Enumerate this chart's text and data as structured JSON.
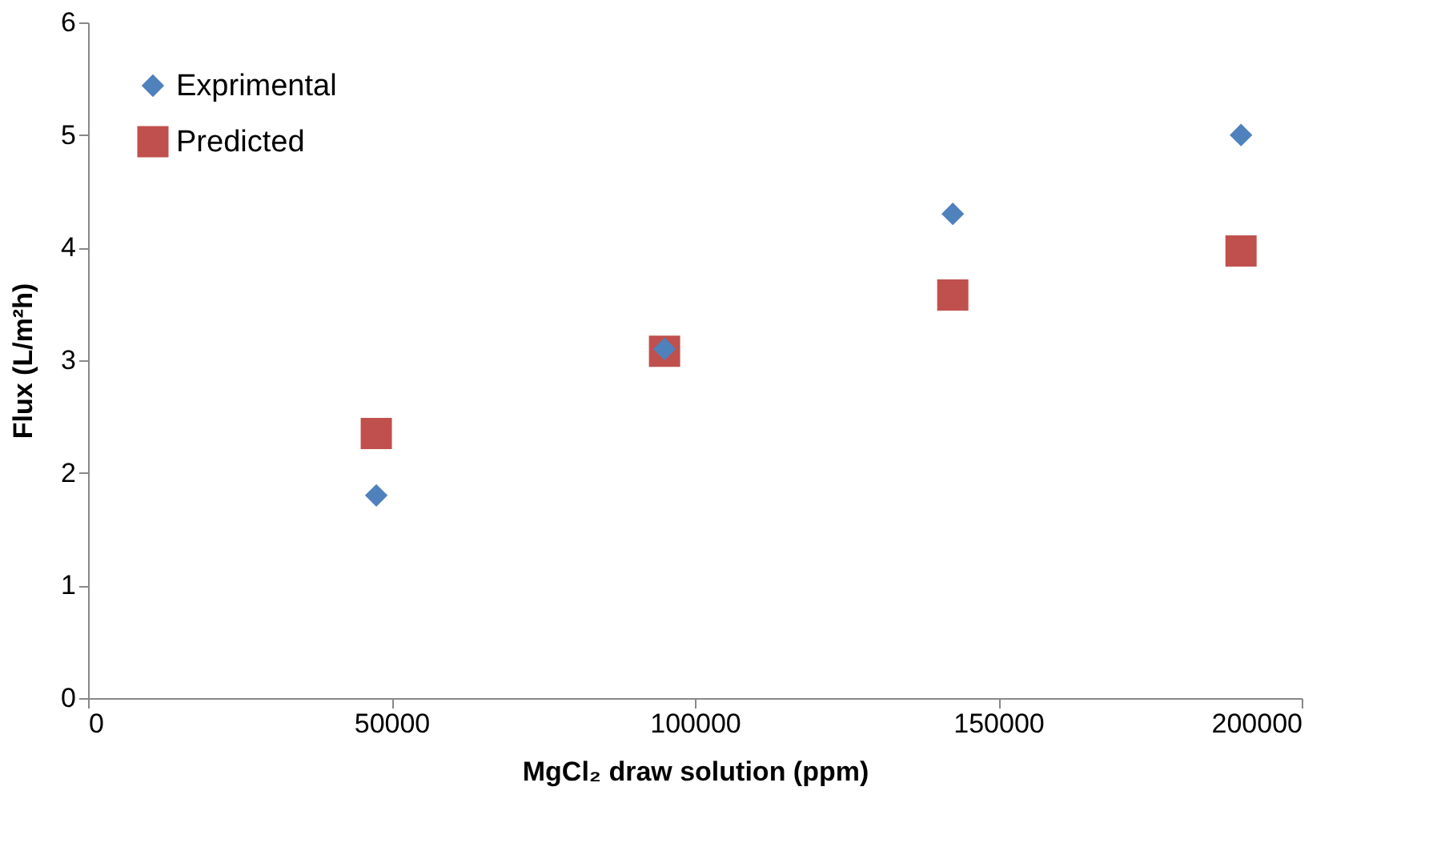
{
  "chart_data": {
    "type": "scatter",
    "xlabel": "MgCl₂ draw solution (ppm)",
    "ylabel": "Flux (L/m²h)",
    "x": [
      47500,
      95000,
      142500,
      190000
    ],
    "series": [
      {
        "name": "Exprimental",
        "color": "#4f81bd",
        "marker": "diamond",
        "values": [
          1.8,
          3.1,
          4.3,
          5.0
        ]
      },
      {
        "name": "Predicted",
        "color": "#c0504d",
        "marker": "square",
        "values": [
          2.35,
          3.08,
          3.58,
          3.97
        ]
      }
    ],
    "xlim": [
      0,
      200000
    ],
    "xticks": [
      0,
      50000,
      100000,
      150000,
      200000
    ],
    "ylim": [
      0,
      6
    ],
    "yticks": [
      0,
      1,
      2,
      3,
      4,
      5,
      6
    ],
    "grid": false,
    "legend": "top left"
  }
}
